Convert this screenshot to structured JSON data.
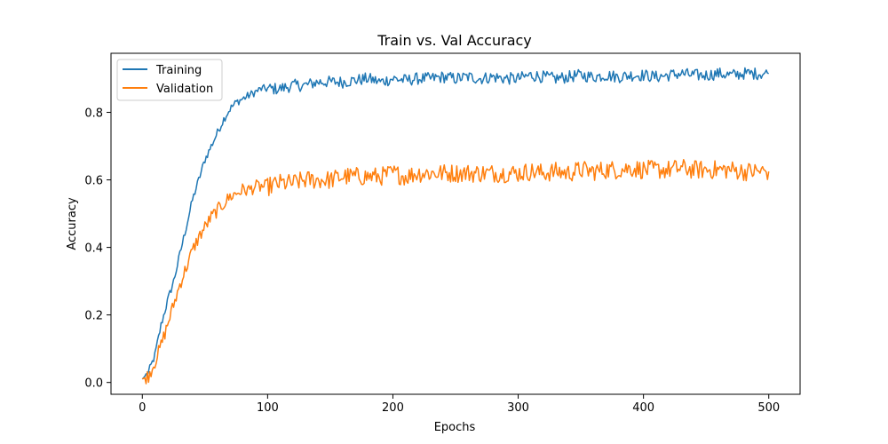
{
  "chart_data": {
    "type": "line",
    "title": "Train vs. Val Accuracy",
    "xlabel": "Epochs",
    "ylabel": "Accuracy",
    "xlim": [
      -25,
      525
    ],
    "ylim": [
      -0.035,
      0.975
    ],
    "xticks": [
      0,
      100,
      200,
      300,
      400,
      500
    ],
    "yticks": [
      0.0,
      0.2,
      0.4,
      0.6,
      0.8
    ],
    "grid": false,
    "legend_position": "top-left",
    "series": [
      {
        "name": "Training",
        "color": "#1f77b4",
        "x": [
          0,
          5,
          10,
          15,
          20,
          25,
          30,
          35,
          40,
          45,
          50,
          55,
          60,
          65,
          70,
          75,
          80,
          85,
          90,
          95,
          100,
          110,
          120,
          130,
          140,
          150,
          160,
          170,
          180,
          190,
          200,
          210,
          220,
          230,
          240,
          250,
          260,
          270,
          280,
          290,
          300,
          310,
          320,
          330,
          340,
          350,
          360,
          370,
          380,
          390,
          400,
          410,
          420,
          430,
          440,
          450,
          460,
          470,
          480,
          490,
          500
        ],
        "values": [
          0.01,
          0.03,
          0.08,
          0.17,
          0.24,
          0.3,
          0.38,
          0.46,
          0.54,
          0.6,
          0.66,
          0.7,
          0.74,
          0.78,
          0.81,
          0.83,
          0.84,
          0.85,
          0.86,
          0.87,
          0.87,
          0.87,
          0.88,
          0.88,
          0.89,
          0.89,
          0.89,
          0.895,
          0.9,
          0.89,
          0.9,
          0.895,
          0.9,
          0.9,
          0.905,
          0.9,
          0.905,
          0.9,
          0.905,
          0.9,
          0.9,
          0.91,
          0.905,
          0.9,
          0.905,
          0.91,
          0.905,
          0.91,
          0.905,
          0.91,
          0.91,
          0.905,
          0.91,
          0.915,
          0.91,
          0.91,
          0.915,
          0.91,
          0.915,
          0.915,
          0.915
        ]
      },
      {
        "name": "Validation",
        "color": "#ff7f0e",
        "x": [
          0,
          5,
          10,
          15,
          20,
          25,
          30,
          35,
          40,
          45,
          50,
          55,
          60,
          65,
          70,
          75,
          80,
          85,
          90,
          95,
          100,
          110,
          120,
          130,
          140,
          150,
          160,
          170,
          180,
          190,
          200,
          210,
          220,
          230,
          240,
          250,
          260,
          270,
          280,
          290,
          300,
          310,
          320,
          330,
          340,
          350,
          360,
          370,
          380,
          390,
          400,
          410,
          420,
          430,
          440,
          450,
          460,
          470,
          480,
          490,
          500
        ],
        "values": [
          0.01,
          0.02,
          0.06,
          0.11,
          0.17,
          0.23,
          0.29,
          0.34,
          0.39,
          0.43,
          0.46,
          0.49,
          0.51,
          0.53,
          0.55,
          0.56,
          0.57,
          0.57,
          0.58,
          0.58,
          0.58,
          0.59,
          0.59,
          0.6,
          0.6,
          0.6,
          0.61,
          0.61,
          0.61,
          0.61,
          0.62,
          0.61,
          0.62,
          0.62,
          0.62,
          0.62,
          0.62,
          0.62,
          0.62,
          0.62,
          0.62,
          0.625,
          0.62,
          0.625,
          0.62,
          0.63,
          0.625,
          0.63,
          0.63,
          0.635,
          0.63,
          0.63,
          0.63,
          0.635,
          0.63,
          0.63,
          0.63,
          0.63,
          0.625,
          0.625,
          0.625
        ]
      }
    ]
  }
}
